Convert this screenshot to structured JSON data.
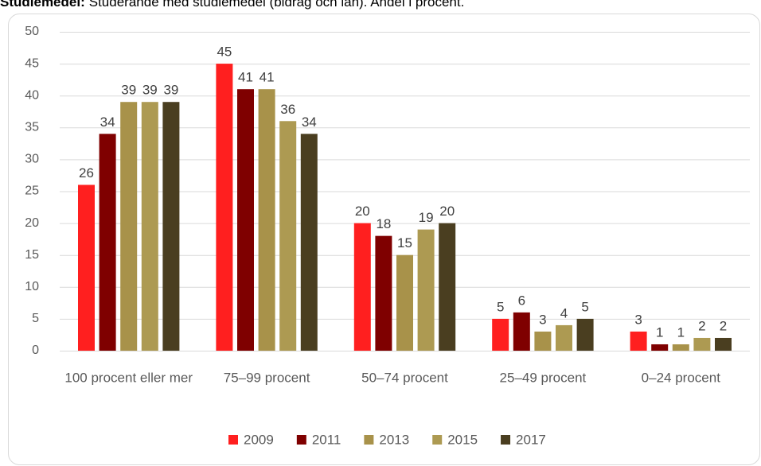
{
  "chart_data": {
    "type": "bar",
    "title_bold": "Studiemedel:",
    "title": "Studerande med studiemedel (bidrag och lån). Andel i procent.",
    "categories": [
      "100 procent eller mer",
      "75–99 procent",
      "50–74 procent",
      "25–49 procent",
      "0–24 procent"
    ],
    "series": [
      {
        "name": "2009",
        "color": "#ff1f1f",
        "values": [
          26,
          45,
          20,
          5,
          3
        ]
      },
      {
        "name": "2011",
        "color": "#7f0000",
        "values": [
          34,
          41,
          18,
          6,
          1
        ]
      },
      {
        "name": "2013",
        "color": "#a8924a",
        "values": [
          39,
          41,
          15,
          3,
          1
        ]
      },
      {
        "name": "2015",
        "color": "#ad9a52",
        "values": [
          39,
          36,
          19,
          4,
          2
        ]
      },
      {
        "name": "2017",
        "color": "#4a3e20",
        "values": [
          39,
          34,
          20,
          5,
          2
        ]
      }
    ],
    "ylim": [
      0,
      50
    ],
    "yticks": [
      0,
      5,
      10,
      15,
      20,
      25,
      30,
      35,
      40,
      45,
      50
    ],
    "grid": true,
    "legend": "bottom"
  }
}
